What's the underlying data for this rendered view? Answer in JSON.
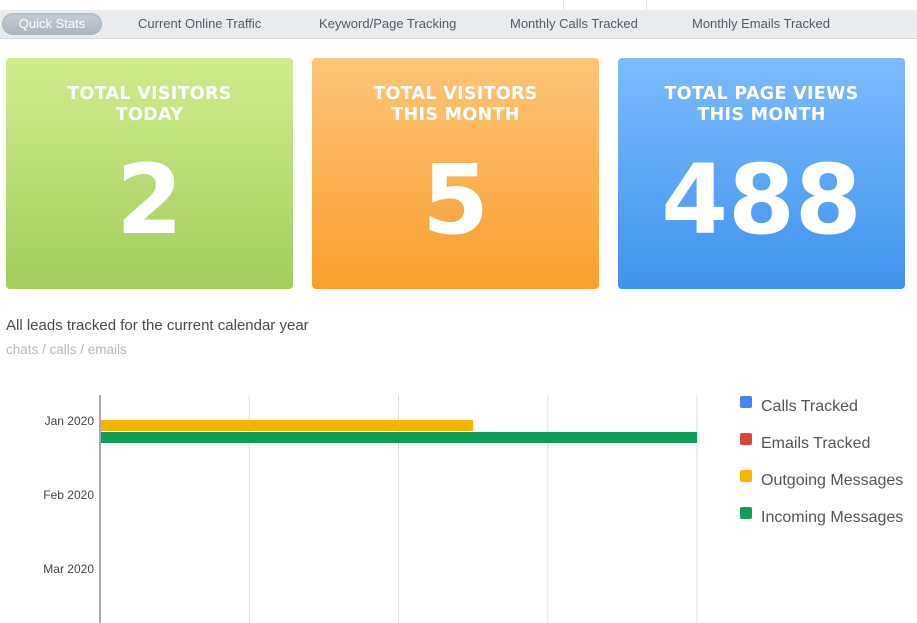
{
  "tabs": [
    {
      "label": "Quick Stats",
      "active": true
    },
    {
      "label": "Current Online Traffic",
      "active": false
    },
    {
      "label": "Keyword/Page Tracking",
      "active": false
    },
    {
      "label": "Monthly Calls Tracked",
      "active": false
    },
    {
      "label": "Monthly Emails Tracked",
      "active": false
    }
  ],
  "cards": [
    {
      "title_line1": "TOTAL VISITORS",
      "title_line2": "TODAY",
      "value": "2",
      "color": "#a3cd5c"
    },
    {
      "title_line1": "TOTAL VISITORS",
      "title_line2": "THIS MONTH",
      "value": "5",
      "color": "#f99f2d"
    },
    {
      "title_line1": "TOTAL PAGE VIEWS",
      "title_line2": "THIS MONTH",
      "value": "488",
      "color": "#3f93ee"
    }
  ],
  "leads": {
    "title": "All leads tracked for the current calendar year",
    "subtitle": "chats / calls / emails"
  },
  "chart_data": {
    "type": "bar",
    "orientation": "horizontal",
    "categories": [
      "Jan 2020",
      "Feb 2020",
      "Mar 2020"
    ],
    "series": [
      {
        "name": "Calls Tracked",
        "color": "#4285f4",
        "values": [
          0,
          0,
          0
        ]
      },
      {
        "name": "Emails Tracked",
        "color": "#db4437",
        "values": [
          0,
          0,
          0
        ]
      },
      {
        "name": "Outgoing Messages",
        "color": "#f4b400",
        "values": [
          5,
          0,
          0
        ]
      },
      {
        "name": "Incoming Messages",
        "color": "#0f9d58",
        "values": [
          8,
          0,
          0
        ]
      }
    ],
    "xlim": [
      0,
      8
    ],
    "grid": true,
    "legend_position": "right"
  }
}
